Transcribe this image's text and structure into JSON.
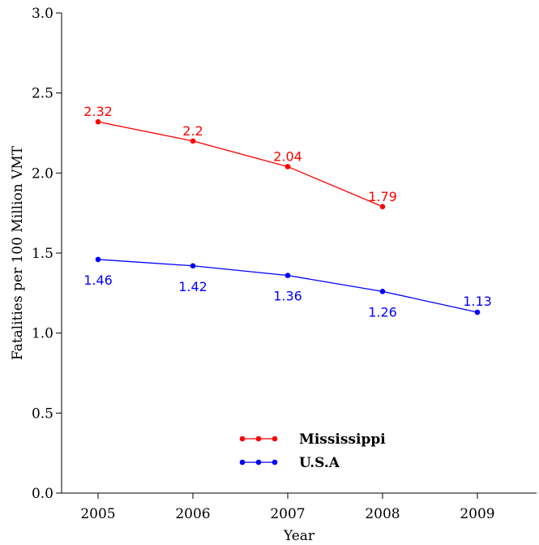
{
  "chart_data": {
    "type": "line",
    "title": "",
    "xlabel": "Year",
    "ylabel": "Fatalities per 100 Million VMT",
    "x": [
      2005,
      2006,
      2007,
      2008,
      2009
    ],
    "xticks": [
      "2005",
      "2006",
      "2007",
      "2008",
      "2009"
    ],
    "ylim": [
      0.0,
      3.0
    ],
    "yticks": [
      "0.0",
      "0.5",
      "1.0",
      "1.5",
      "2.0",
      "2.5",
      "3.0"
    ],
    "grid": false,
    "legend_position": "bottom-center",
    "series": [
      {
        "name": "Mississippi",
        "color": "#ff0000",
        "x": [
          2005,
          2006,
          2007,
          2008
        ],
        "values": [
          2.32,
          2.2,
          2.04,
          1.79
        ],
        "labels": [
          "2.32",
          "2.2",
          "2.04",
          "1.79"
        ],
        "label_position": "above"
      },
      {
        "name": "U.S.A",
        "color": "#0000ff",
        "x": [
          2005,
          2006,
          2007,
          2008,
          2009
        ],
        "values": [
          1.46,
          1.42,
          1.36,
          1.26,
          1.13
        ],
        "labels": [
          "1.46",
          "1.42",
          "1.36",
          "1.26",
          "1.13"
        ],
        "label_position": "below"
      }
    ]
  }
}
